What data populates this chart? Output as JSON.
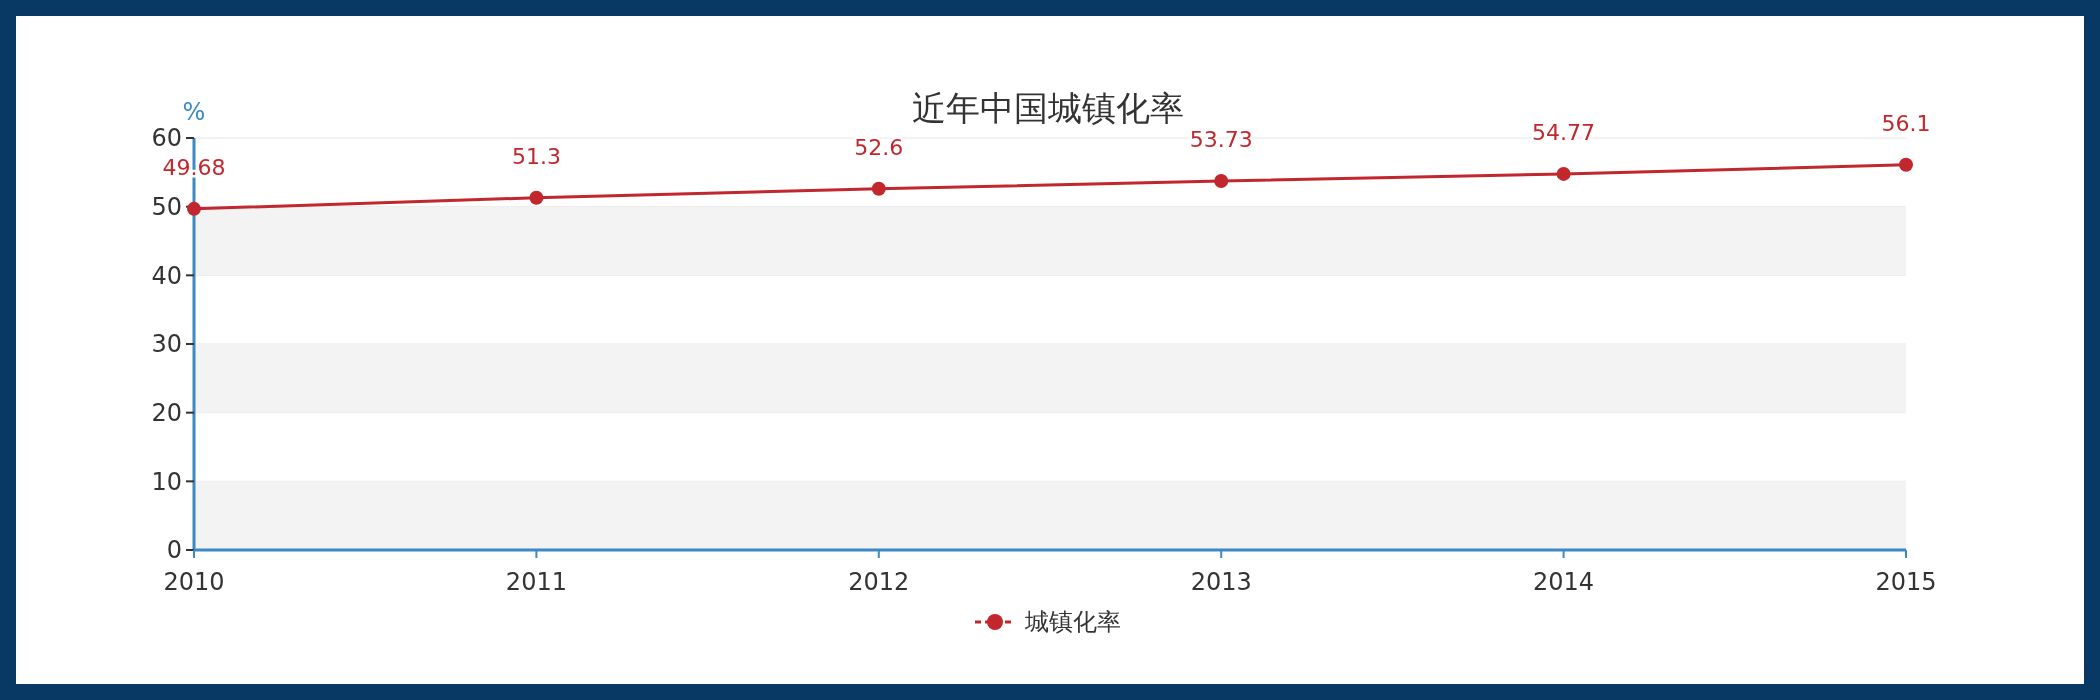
{
  "chart_data": {
    "type": "line",
    "title": "近年中国城镇化率",
    "ylabel": "%",
    "categories": [
      "2010",
      "2011",
      "2012",
      "2013",
      "2014",
      "2015"
    ],
    "series": [
      {
        "name": "城镇化率",
        "color": "#c1272d",
        "values": [
          49.68,
          51.3,
          52.6,
          53.73,
          54.77,
          56.1
        ]
      }
    ],
    "ylim": [
      0,
      60
    ],
    "yticks": [
      0,
      10,
      20,
      30,
      40,
      50,
      60
    ],
    "grid": "y",
    "legend": "bottom",
    "marker": "circle",
    "data_labels": true
  }
}
